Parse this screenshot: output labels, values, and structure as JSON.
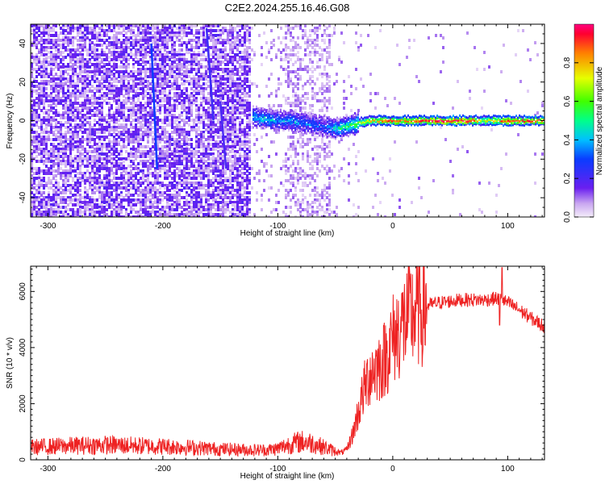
{
  "title": "C2E2.2024.255.16.46.G08",
  "top_panel": {
    "xlabel": "Height of straight line (km)",
    "ylabel": "Frequency (Hz)",
    "x_ticks": [
      "-300",
      "-200",
      "-100",
      "0",
      "100"
    ],
    "y_ticks": [
      "40",
      "20",
      "0",
      "-20",
      "-40"
    ]
  },
  "colorbar": {
    "label": "Normalized spectral amplitude",
    "ticks": [
      "0.0",
      "0.2",
      "0.4",
      "0.6",
      "0.8"
    ]
  },
  "bottom_panel": {
    "xlabel": "Height of straight line (km)",
    "ylabel": "SNR (10 * v/v)",
    "x_ticks": [
      "-300",
      "-200",
      "-100",
      "0",
      "100"
    ],
    "y_ticks": [
      "6000",
      "4000",
      "2000",
      "0"
    ]
  },
  "colors": {
    "snr_line": "#ee2222"
  },
  "chart_data": [
    {
      "type": "heatmap",
      "title": "C2E2.2024.255.16.46.G08",
      "xlabel": "Height of straight line (km)",
      "ylabel": "Frequency (Hz)",
      "xlim": [
        -315,
        132
      ],
      "ylim": [
        -50,
        50
      ],
      "colorbar_label": "Normalized spectral amplitude",
      "colorbar_range": [
        0,
        1
      ],
      "ridge": {
        "x": [
          -122,
          -110,
          -100,
          -90,
          -80,
          -70,
          -60,
          -50,
          -40,
          -30,
          -20,
          -10,
          0,
          20,
          40,
          60,
          80,
          100,
          130
        ],
        "y": [
          2,
          1,
          0,
          0,
          -1,
          -2,
          -3,
          -4,
          -3,
          -1,
          0,
          0,
          0,
          0,
          0,
          0,
          0,
          0,
          0
        ],
        "amplitude": [
          0.4,
          0.45,
          0.35,
          0.4,
          0.35,
          0.35,
          0.3,
          0.45,
          0.55,
          0.6,
          0.75,
          0.85,
          0.85,
          0.9,
          0.95,
          0.95,
          0.7,
          0.9,
          0.9
        ]
      }
    },
    {
      "type": "line",
      "xlabel": "Height of straight line (km)",
      "ylabel": "SNR (10 * v/v)",
      "xlim": [
        -315,
        132
      ],
      "ylim": [
        0,
        6900
      ],
      "series": [
        {
          "x": [
            -315,
            -280,
            -250,
            -220,
            -200,
            -180,
            -150,
            -120,
            -110,
            -100,
            -90,
            -80,
            -70,
            -60,
            -50,
            -45,
            -40,
            -35,
            -30,
            -25,
            -20,
            -15,
            -10,
            -5,
            0,
            10,
            20,
            30,
            40,
            50,
            60,
            70,
            80,
            90,
            95,
            100,
            110,
            120,
            132
          ],
          "values": [
            450,
            500,
            530,
            500,
            480,
            450,
            380,
            350,
            350,
            400,
            550,
            650,
            600,
            450,
            300,
            250,
            350,
            900,
            1700,
            2500,
            3100,
            3300,
            3400,
            3800,
            4300,
            4900,
            5300,
            5500,
            5600,
            5650,
            5700,
            5700,
            5700,
            5750,
            5700,
            5600,
            5350,
            5050,
            4750
          ]
        }
      ]
    }
  ]
}
